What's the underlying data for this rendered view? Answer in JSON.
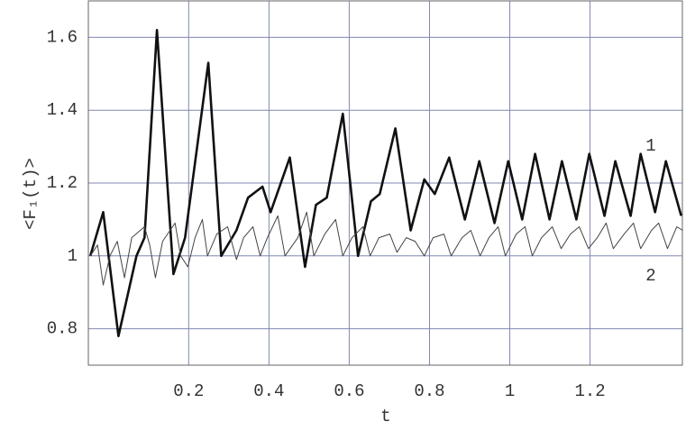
{
  "chart_data": {
    "type": "line",
    "x_label": "t",
    "y_label": "<F₁(t)>",
    "xlim": [
      -0.05,
      1.43
    ],
    "ylim": [
      0.7,
      1.7
    ],
    "xticks": [
      0.2,
      0.4,
      0.6,
      0.8,
      1,
      1.2
    ],
    "yticks": [
      0.8,
      1,
      1.2,
      1.4,
      1.6
    ],
    "grid": true,
    "series": [
      {
        "name": "1",
        "color": "#111111",
        "width": 2.6,
        "x": [
          -0.045,
          -0.013,
          0.025,
          0.07,
          0.09,
          0.121,
          0.162,
          0.191,
          0.249,
          0.281,
          0.319,
          0.348,
          0.384,
          0.404,
          0.452,
          0.49,
          0.517,
          0.544,
          0.584,
          0.622,
          0.654,
          0.676,
          0.715,
          0.753,
          0.787,
          0.813,
          0.849,
          0.888,
          0.924,
          0.962,
          0.996,
          1.031,
          1.063,
          1.099,
          1.13,
          1.166,
          1.198,
          1.236,
          1.263,
          1.301,
          1.326,
          1.362,
          1.389,
          1.427
        ],
        "values": [
          1.0,
          1.12,
          0.78,
          1.0,
          1.05,
          1.62,
          0.95,
          1.05,
          1.53,
          1.0,
          1.07,
          1.16,
          1.19,
          1.12,
          1.27,
          0.97,
          1.14,
          1.16,
          1.39,
          1.0,
          1.15,
          1.17,
          1.35,
          1.07,
          1.21,
          1.17,
          1.27,
          1.1,
          1.26,
          1.09,
          1.26,
          1.1,
          1.28,
          1.1,
          1.26,
          1.1,
          1.28,
          1.11,
          1.26,
          1.11,
          1.28,
          1.12,
          1.26,
          1.11
        ]
      },
      {
        "name": "2",
        "color": "#444444",
        "width": 1,
        "x": [
          -0.045,
          -0.027,
          -0.013,
          0.004,
          0.022,
          0.04,
          0.058,
          0.09,
          0.103,
          0.117,
          0.135,
          0.166,
          0.18,
          0.198,
          0.216,
          0.234,
          0.247,
          0.27,
          0.297,
          0.319,
          0.337,
          0.36,
          0.378,
          0.396,
          0.422,
          0.44,
          0.472,
          0.494,
          0.512,
          0.539,
          0.566,
          0.584,
          0.607,
          0.634,
          0.652,
          0.674,
          0.701,
          0.719,
          0.742,
          0.764,
          0.787,
          0.809,
          0.836,
          0.854,
          0.881,
          0.903,
          0.926,
          0.948,
          0.971,
          0.989,
          1.016,
          1.038,
          1.056,
          1.079,
          1.106,
          1.128,
          1.151,
          1.173,
          1.196,
          1.218,
          1.24,
          1.258,
          1.285,
          1.308,
          1.326,
          1.353,
          1.371,
          1.393,
          1.416,
          1.431
        ],
        "values": [
          1.0,
          1.03,
          0.92,
          1.0,
          1.04,
          0.94,
          1.05,
          1.08,
          1.03,
          0.94,
          1.04,
          1.09,
          1.0,
          0.97,
          1.05,
          1.1,
          1.0,
          1.06,
          1.08,
          0.99,
          1.05,
          1.08,
          1.0,
          1.05,
          1.11,
          1.0,
          1.05,
          1.12,
          1.0,
          1.06,
          1.1,
          1.0,
          1.05,
          1.08,
          1.0,
          1.05,
          1.06,
          1.01,
          1.05,
          1.04,
          1.0,
          1.05,
          1.06,
          1.0,
          1.05,
          1.07,
          1.0,
          1.05,
          1.08,
          1.0,
          1.06,
          1.08,
          1.0,
          1.05,
          1.08,
          1.02,
          1.06,
          1.08,
          1.02,
          1.05,
          1.09,
          1.02,
          1.06,
          1.09,
          1.02,
          1.07,
          1.09,
          1.02,
          1.08,
          1.07
        ]
      }
    ]
  }
}
